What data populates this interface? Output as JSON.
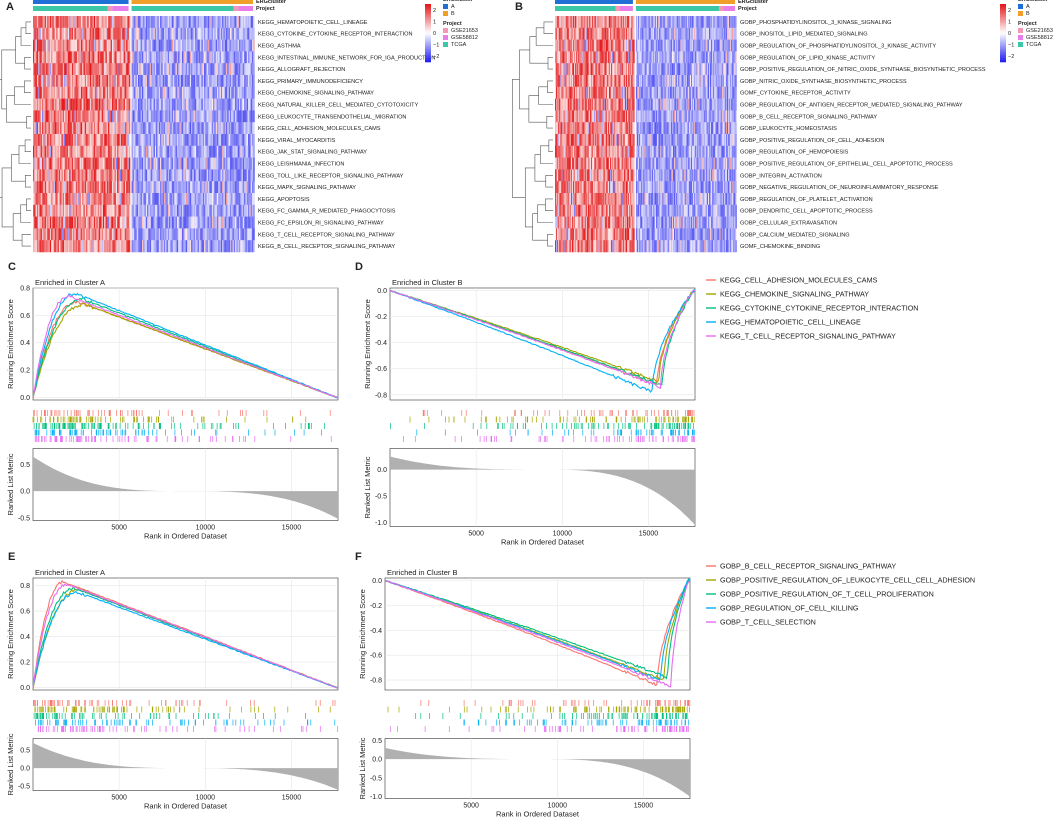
{
  "panel_letters": [
    "A",
    "B",
    "C",
    "D",
    "E",
    "F"
  ],
  "colors": {
    "cluster_A": "#1f6fd6",
    "cluster_B": "#f0a02a",
    "proj_GSE21653": "#f598b4",
    "proj_GSE58812": "#e77ee9",
    "proj_TCGA": "#3cc7a8",
    "heat_high": "#e31a1c",
    "heat_mid": "#ffffff",
    "heat_low": "#2222ee"
  },
  "chart_data": [
    {
      "panel": "A",
      "type": "heatmap",
      "annotation_labels": [
        "ERGcluster",
        "Project"
      ],
      "legend_cluster_title": "ERGcluster",
      "legend_cluster_entries": [
        "A",
        "B"
      ],
      "legend_project_title": "Project",
      "legend_project_entries": [
        "GSE21653",
        "GSE58812",
        "TCGA"
      ],
      "color_scale_ticks": [
        "2",
        "1",
        "0",
        "−1",
        "−2"
      ],
      "color_scale_range": [
        -2.5,
        2.5
      ],
      "cluster_A_fraction": 0.44,
      "rows": [
        "KEGG_HEMATOPOIETIC_CELL_LINEAGE",
        "KEGG_CYTOKINE_CYTOKINE_RECEPTOR_INTERACTION",
        "KEGG_ASTHMA",
        "KEGG_INTESTINAL_IMMUNE_NETWORK_FOR_IGA_PRODUCTION",
        "KEGG_ALLOGRAFT_REJECTION",
        "KEGG_PRIMARY_IMMUNODEFICIENCY",
        "KEGG_CHEMOKINE_SIGNALING_PATHWAY",
        "KEGG_NATURAL_KILLER_CELL_MEDIATED_CYTOTOXICITY",
        "KEGG_LEUKOCYTE_TRANSENDOTHELIAL_MIGRATION",
        "KEGG_CELL_ADHESION_MOLECULES_CAMS",
        "KEGG_VIRAL_MYOCARDITIS",
        "KEGG_JAK_STAT_SIGNALING_PATHWAY",
        "KEGG_LEISHMANIA_INFECTION",
        "KEGG_TOLL_LIKE_RECEPTOR_SIGNALING_PATHWAY",
        "KEGG_MAPK_SIGNALING_PATHWAY",
        "KEGG_APOPTOSIS",
        "KEGG_FC_GAMMA_R_MEDIATED_PHAGOCYTOSIS",
        "KEGG_FC_EPSILON_RI_SIGNALING_PATHWAY",
        "KEGG_T_CELL_RECEPTOR_SIGNALING_PATHWAY",
        "KEGG_B_CELL_RECEPTOR_SIGNALING_PATHWAY"
      ]
    },
    {
      "panel": "B",
      "type": "heatmap",
      "annotation_labels": [
        "ERGcluster",
        "Project"
      ],
      "legend_cluster_title": "ERGcluster",
      "legend_cluster_entries": [
        "A",
        "B"
      ],
      "legend_project_title": "Project",
      "legend_project_entries": [
        "GSE21653",
        "GSE58812",
        "TCGA"
      ],
      "color_scale_ticks": [
        "2",
        "1",
        "0",
        "−1",
        "−2"
      ],
      "color_scale_range": [
        -2.5,
        2.5
      ],
      "cluster_A_fraction": 0.44,
      "rows": [
        "GOBP_PHOSPHATIDYLINOSITOL_3_KINASE_SIGNALING",
        "GOBP_INOSITOL_LIPID_MEDIATED_SIGNALING",
        "GOBP_REGULATION_OF_PHOSPHATIDYLINOSITOL_3_KINASE_ACTIVITY",
        "GOBP_REGULATION_OF_LIPID_KINASE_ACTIVITY",
        "GOBP_POSITIVE_REGULATION_OF_NITRIC_OXIDE_SYNTHASE_BIOSYNTHETIC_PROCESS",
        "GOBP_NITRIC_OXIDE_SYNTHASE_BIOSYNTHETIC_PROCESS",
        "GOMF_CYTOKINE_RECEPTOR_ACTIVITY",
        "GOBP_REGULATION_OF_ANTIGEN_RECEPTOR_MEDIATED_SIGNALING_PATHWAY",
        "GOBP_B_CELL_RECEPTOR_SIGNALING_PATHWAY",
        "GOBP_LEUKOCYTE_HOMEOSTASIS",
        "GOBP_POSITIVE_REGULATION_OF_CELL_ADHESION",
        "GOBP_REGULATION_OF_HEMOPOIESIS",
        "GOBP_POSITIVE_REGULATION_OF_EPITHELIAL_CELL_APOPTOTIC_PROCESS",
        "GOBP_INTEGRIN_ACTIVATION",
        "GOBP_NEGATIVE_REGULATION_OF_NEUROINFLAMMATORY_RESPONSE",
        "GOBP_REGULATION_OF_PLATELET_ACTIVATION",
        "GOBP_DENDRITIC_CELL_APOPTOTIC_PROCESS",
        "GOBP_CELLULAR_EXTRAVASATION",
        "GOBP_CALCIUM_MEDIATED_SIGNALING",
        "GOMF_CHEMOKINE_BINDING"
      ]
    },
    {
      "panel": "C",
      "type": "line",
      "title": "Enriched in Cluster A",
      "xlabel": "Rank in Ordered Dataset",
      "ylabel_es": "Running Enrichment Score",
      "ylabel_metric": "Ranked List Metric",
      "xlim": [
        0,
        17700
      ],
      "x_ticks": [
        5000,
        10000,
        15000
      ],
      "es_ylim": [
        -0.02,
        0.8
      ],
      "es_ticks": [
        0.0,
        0.2,
        0.4,
        0.6,
        0.8
      ],
      "metric_ylim": [
        -0.55,
        0.8
      ],
      "metric_ticks": [
        0.5,
        0.0,
        -0.5
      ],
      "metric_shape": {
        "start": 0.65,
        "end": -0.52
      },
      "direction": "A",
      "series": [
        {
          "name": "KEGG_CELL_ADHESION_MOLECULES_CAMS",
          "color": "#f8766d",
          "peak": 0.7,
          "peak_x": 2600,
          "end_x": 17600,
          "hits": 0.25
        },
        {
          "name": "KEGG_CHEMOKINE_SIGNALING_PATHWAY",
          "color": "#a3a500",
          "peak": 0.68,
          "peak_x": 3000,
          "end_x": 17600,
          "hits": 0.45
        },
        {
          "name": "KEGG_CYTOKINE_CYTOKINE_RECEPTOR_INTERACTION",
          "color": "#00bf7d",
          "peak": 0.72,
          "peak_x": 2900,
          "end_x": 17600,
          "hits": 0.55
        },
        {
          "name": "KEGG_HEMATOPOIETIC_CELL_LINEAGE",
          "color": "#00b0f6",
          "peak": 0.76,
          "peak_x": 2500,
          "end_x": 17600,
          "hits": 0.3
        },
        {
          "name": "KEGG_T_CELL_RECEPTOR_SIGNALING_PATHWAY",
          "color": "#e76bf3",
          "peak": 0.74,
          "peak_x": 2100,
          "end_x": 17600,
          "hits": 0.35
        }
      ]
    },
    {
      "panel": "D",
      "type": "line",
      "title": "Enriched in Cluster B",
      "xlabel": "Rank in Ordered Dataset",
      "ylabel_es": "Running Enrichment Score",
      "ylabel_metric": "Ranked List Metric",
      "xlim": [
        0,
        17700
      ],
      "x_ticks": [
        5000,
        10000,
        15000
      ],
      "es_ylim": [
        -0.84,
        0.02
      ],
      "es_ticks": [
        0.0,
        -0.2,
        -0.4,
        -0.6,
        -0.8
      ],
      "metric_ylim": [
        -1.08,
        0.4
      ],
      "metric_ticks": [
        0.0,
        -0.5,
        -1.0
      ],
      "metric_shape": {
        "start": 0.25,
        "end": -1.05
      },
      "direction": "B",
      "series": [
        {
          "name": "KEGG_CELL_ADHESION_MOLECULES_CAMS",
          "color": "#f8766d",
          "peak": -0.72,
          "peak_x": 15500,
          "end_x": 17600,
          "hits": 0.25
        },
        {
          "name": "KEGG_CHEMOKINE_SIGNALING_PATHWAY",
          "color": "#a3a500",
          "peak": -0.7,
          "peak_x": 15600,
          "end_x": 17600,
          "hits": 0.55
        },
        {
          "name": "KEGG_CYTOKINE_CYTOKINE_RECEPTOR_INTERACTION",
          "color": "#00bf7d",
          "peak": -0.73,
          "peak_x": 15800,
          "end_x": 17600,
          "hits": 0.5
        },
        {
          "name": "KEGG_HEMATOPOIETIC_CELL_LINEAGE",
          "color": "#00b0f6",
          "peak": -0.78,
          "peak_x": 15200,
          "end_x": 17600,
          "hits": 0.35
        },
        {
          "name": "KEGG_T_CELL_RECEPTOR_SIGNALING_PATHWAY",
          "color": "#e76bf3",
          "peak": -0.74,
          "peak_x": 15700,
          "end_x": 17600,
          "hits": 0.4
        }
      ]
    },
    {
      "panel": "E",
      "type": "line",
      "title": "Enriched in Cluster A",
      "xlabel": "Rank in Ordered Dataset",
      "ylabel_es": "Running Enrichment Score",
      "ylabel_metric": "Ranked List Metric",
      "xlim": [
        0,
        17700
      ],
      "x_ticks": [
        5000,
        10000,
        15000
      ],
      "es_ylim": [
        -0.02,
        0.86
      ],
      "es_ticks": [
        0.0,
        0.2,
        0.4,
        0.6,
        0.8
      ],
      "metric_ylim": [
        -0.62,
        0.82
      ],
      "metric_ticks": [
        0.5,
        0.0,
        -0.5
      ],
      "metric_shape": {
        "start": 0.7,
        "end": -0.6
      },
      "direction": "A",
      "series": [
        {
          "name": "GOBP_B_CELL_RECEPTOR_SIGNALING_PATHWAY",
          "color": "#f8766d",
          "peak": 0.83,
          "peak_x": 1800,
          "end_x": 17600,
          "hits": 0.3
        },
        {
          "name": "GOBP_POSITIVE_REGULATION_OF_LEUKOCYTE_CELL_CELL_ADHESION",
          "color": "#a3a500",
          "peak": 0.77,
          "peak_x": 2700,
          "end_x": 17600,
          "hits": 0.5
        },
        {
          "name": "GOBP_POSITIVE_REGULATION_OF_T_CELL_PROLIFERATION",
          "color": "#00bf7d",
          "peak": 0.78,
          "peak_x": 2400,
          "end_x": 17600,
          "hits": 0.35
        },
        {
          "name": "GOBP_REGULATION_OF_CELL_KILLING",
          "color": "#00b0f6",
          "peak": 0.75,
          "peak_x": 2600,
          "end_x": 17600,
          "hits": 0.3
        },
        {
          "name": "GOBP_T_CELL_SELECTION",
          "color": "#e76bf3",
          "peak": 0.81,
          "peak_x": 2000,
          "end_x": 17600,
          "hits": 0.2
        }
      ]
    },
    {
      "panel": "F",
      "type": "line",
      "title": "Enriched in Cluster B",
      "xlabel": "Rank in Ordered Dataset",
      "ylabel_es": "Running Enrichment Score",
      "ylabel_metric": "Ranked List Metric",
      "xlim": [
        0,
        17700
      ],
      "x_ticks": [
        5000,
        10000,
        15000
      ],
      "es_ylim": [
        -0.88,
        0.02
      ],
      "es_ticks": [
        0.0,
        -0.2,
        -0.4,
        -0.6,
        -0.8
      ],
      "metric_ylim": [
        -1.05,
        0.55
      ],
      "metric_ticks": [
        0.5,
        0.0,
        -0.5,
        -1.0
      ],
      "metric_shape": {
        "start": 0.3,
        "end": -1.0
      },
      "direction": "B",
      "series": [
        {
          "name": "GOBP_B_CELL_RECEPTOR_SIGNALING_PATHWAY",
          "color": "#f8766d",
          "peak": -0.84,
          "peak_x": 15800,
          "end_x": 17600,
          "hits": 0.25
        },
        {
          "name": "GOBP_POSITIVE_REGULATION_OF_LEUKOCYTE_CELL_CELL_ADHESION",
          "color": "#a3a500",
          "peak": -0.8,
          "peak_x": 16200,
          "end_x": 17600,
          "hits": 0.55
        },
        {
          "name": "GOBP_POSITIVE_REGULATION_OF_T_CELL_PROLIFERATION",
          "color": "#00bf7d",
          "peak": -0.78,
          "peak_x": 16400,
          "end_x": 17600,
          "hits": 0.45
        },
        {
          "name": "GOBP_REGULATION_OF_CELL_KILLING",
          "color": "#00b0f6",
          "peak": -0.8,
          "peak_x": 16000,
          "end_x": 17600,
          "hits": 0.35
        },
        {
          "name": "GOBP_T_CELL_SELECTION",
          "color": "#e76bf3",
          "peak": -0.85,
          "peak_x": 16600,
          "end_x": 17600,
          "hits": 0.3
        }
      ]
    }
  ]
}
